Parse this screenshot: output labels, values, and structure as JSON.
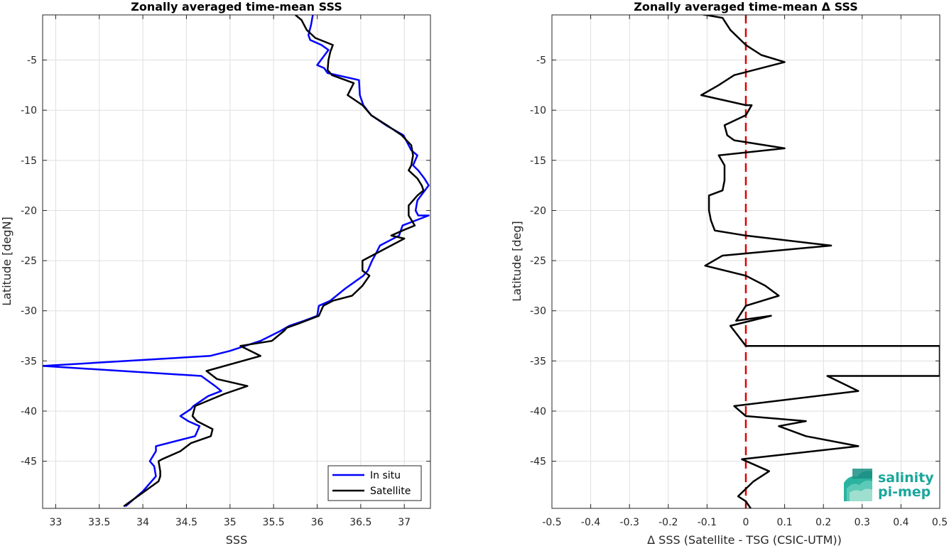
{
  "chart_data": [
    {
      "type": "line",
      "title": "Zonally averaged time-mean SSS",
      "xlabel": "SSS",
      "ylabel": "Latitude [degN]",
      "xlim": [
        32.85,
        37.3
      ],
      "ylim": [
        -49.7,
        -0.5
      ],
      "xticks": [
        "33",
        "33.5",
        "34",
        "34.5",
        "35",
        "35.5",
        "36",
        "36.5",
        "37"
      ],
      "yticks": [
        "-5",
        "-10",
        "-15",
        "-20",
        "-25",
        "-30",
        "-35",
        "-40",
        "-45"
      ],
      "grid": true,
      "legend_position": "bottom-right",
      "colors": {
        "In situ": "#0000ff",
        "Satellite": "#000000"
      },
      "series": [
        {
          "name": "In situ",
          "color": "#0000ff",
          "x": [
            35.95,
            35.93,
            35.9,
            35.92,
            36.05,
            36.13,
            36.0,
            36.08,
            36.12,
            36.48,
            36.49,
            36.53,
            36.62,
            36.79,
            36.99,
            37.05,
            37.08,
            37.15,
            37.1,
            37.16,
            37.23,
            37.28,
            37.15,
            37.13,
            37.16,
            37.28,
            36.98,
            36.94,
            36.72,
            36.68,
            36.63,
            36.58,
            36.53,
            36.32,
            36.15,
            36.02,
            36.0,
            35.85,
            35.68,
            35.58,
            35.35,
            35.0,
            34.77,
            32.85,
            34.67,
            34.83,
            34.9,
            34.75,
            34.58,
            34.55,
            34.43,
            34.52,
            34.65,
            34.6,
            34.15,
            34.15,
            34.08,
            34.13,
            34.15,
            34.0,
            33.8
          ],
          "y": [
            -0.5,
            -1.5,
            -2.5,
            -3.0,
            -3.5,
            -4.0,
            -5.5,
            -5.8,
            -6.3,
            -7.0,
            -8.5,
            -9.5,
            -10.5,
            -11.5,
            -12.5,
            -13.5,
            -14.0,
            -14.5,
            -15.5,
            -16.0,
            -16.8,
            -17.5,
            -19.0,
            -20.0,
            -20.5,
            -20.5,
            -21.5,
            -22.5,
            -23.5,
            -24.2,
            -25.0,
            -26.0,
            -26.5,
            -27.8,
            -29.0,
            -29.5,
            -30.5,
            -31.0,
            -31.5,
            -32.0,
            -33.0,
            -34.0,
            -34.5,
            -35.5,
            -36.5,
            -37.5,
            -38.0,
            -38.5,
            -39.5,
            -39.8,
            -40.5,
            -41.0,
            -41.5,
            -42.5,
            -43.5,
            -44.0,
            -45.0,
            -45.5,
            -46.5,
            -48.0,
            -49.5
          ]
        },
        {
          "name": "Satellite",
          "color": "#000000",
          "x": [
            35.75,
            35.82,
            35.88,
            35.98,
            36.18,
            36.15,
            36.13,
            36.12,
            36.17,
            36.42,
            36.35,
            36.52,
            36.62,
            36.8,
            36.97,
            37.08,
            37.1,
            37.08,
            37.05,
            37.15,
            37.2,
            37.22,
            37.15,
            37.05,
            37.05,
            37.12,
            36.98,
            36.85,
            37.0,
            36.52,
            36.52,
            36.6,
            36.52,
            36.4,
            36.18,
            36.07,
            36.02,
            35.78,
            35.65,
            35.62,
            35.48,
            35.12,
            35.35,
            34.73,
            34.85,
            35.2,
            34.93,
            34.6,
            34.57,
            34.62,
            34.8,
            34.78,
            34.55,
            34.43,
            34.22,
            34.18,
            34.2,
            34.2,
            34.18,
            34.02,
            33.78
          ],
          "y": [
            -0.5,
            -1.0,
            -2.0,
            -2.8,
            -3.5,
            -4.2,
            -5.0,
            -6.0,
            -6.5,
            -7.3,
            -8.5,
            -9.5,
            -10.5,
            -11.5,
            -12.5,
            -13.5,
            -14.5,
            -15.5,
            -16.0,
            -16.8,
            -17.5,
            -18.0,
            -18.5,
            -19.5,
            -20.5,
            -21.5,
            -22.0,
            -22.5,
            -22.8,
            -25.0,
            -26.0,
            -26.5,
            -27.5,
            -28.5,
            -29.0,
            -29.5,
            -30.5,
            -31.3,
            -31.7,
            -32.0,
            -33.0,
            -33.5,
            -34.5,
            -36.0,
            -36.8,
            -37.5,
            -38.3,
            -39.5,
            -40.5,
            -41.0,
            -41.8,
            -42.5,
            -43.2,
            -44.0,
            -44.8,
            -45.0,
            -46.0,
            -46.5,
            -47.0,
            -48.0,
            -49.5
          ]
        }
      ]
    },
    {
      "type": "line",
      "title": "Zonally averaged time-mean Δ SSS",
      "xlabel": "Δ SSS (Satellite - TSG (CSIC-UTM))",
      "ylabel": "Latitude [deg]",
      "xlim": [
        -0.5,
        0.5
      ],
      "ylim": [
        -49.7,
        -0.5
      ],
      "xticks": [
        "-0.5",
        "-0.4",
        "-0.3",
        "-0.2",
        "-0.1",
        "0",
        "0.1",
        "0.2",
        "0.3",
        "0.4",
        "0.5"
      ],
      "yticks": [
        "-5",
        "-10",
        "-15",
        "-20",
        "-25",
        "-30",
        "-35",
        "-40",
        "-45"
      ],
      "grid": true,
      "reference_line": {
        "x": 0,
        "style": "dashed",
        "color": "#e00000"
      },
      "series": [
        {
          "name": "",
          "color": "#000000",
          "x": [
            -0.18,
            -0.06,
            -0.04,
            0.0,
            0.04,
            0.1,
            -0.03,
            -0.07,
            -0.115,
            0.0,
            0.015,
            0.0,
            -0.055,
            -0.048,
            -0.03,
            0.1,
            -0.07,
            -0.055,
            -0.055,
            -0.06,
            -0.095,
            -0.095,
            -0.09,
            -0.08,
            0.0,
            0.22,
            -0.06,
            -0.105,
            0.0,
            0.05,
            0.085,
            0.0,
            -0.025,
            0.065,
            -0.04,
            0.0,
            0.5,
            0.5,
            0.21,
            0.29,
            -0.03,
            0.0,
            0.155,
            0.085,
            0.155,
            0.29,
            -0.01,
            0.06,
            0.02,
            -0.02,
            0.0,
            0.018
          ],
          "y": [
            0.0,
            -0.8,
            -2.0,
            -3.5,
            -4.5,
            -5.2,
            -6.5,
            -7.5,
            -8.5,
            -9.5,
            -9.5,
            -10.5,
            -11.5,
            -12.5,
            -13.0,
            -13.8,
            -14.5,
            -15.5,
            -17.0,
            -18.0,
            -18.5,
            -20.0,
            -21.0,
            -22.0,
            -22.5,
            -23.5,
            -24.5,
            -25.5,
            -26.5,
            -27.5,
            -28.5,
            -29.5,
            -31.0,
            -30.5,
            -31.5,
            -33.5,
            -33.5,
            -36.5,
            -36.5,
            -38.0,
            -39.5,
            -40.5,
            -41.0,
            -41.5,
            -42.5,
            -43.5,
            -44.8,
            -46.0,
            -47.0,
            -48.5,
            -49.0,
            -50.0
          ]
        }
      ]
    }
  ],
  "legend": {
    "items": [
      "In situ",
      "Satellite"
    ]
  },
  "logo": {
    "line1": "salinity",
    "line2": "pi-mep"
  }
}
